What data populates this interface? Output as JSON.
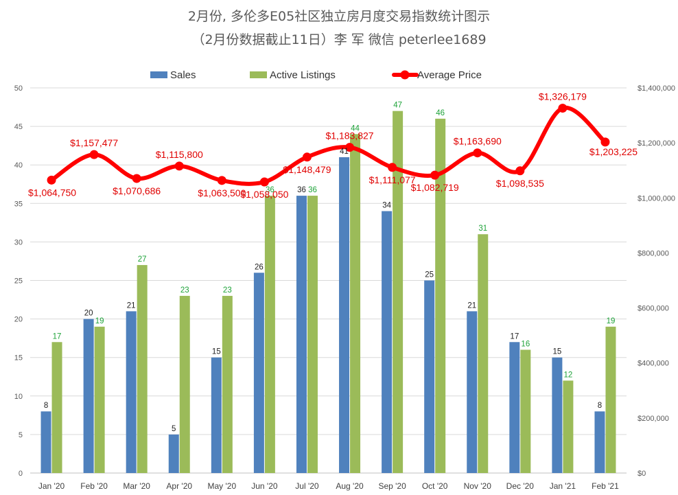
{
  "chart_data": {
    "type": "bar",
    "title": "2月份, 多伦多E05社区独立房月度交易指数统计图示",
    "subtitle": "（2月份数据截止11日）李 军  微信  peterlee1689",
    "categories": [
      "Jan '20",
      "Feb '20",
      "Mar '20",
      "Apr '20",
      "May '20",
      "Jun '20",
      "Jul '20",
      "Aug '20",
      "Sep '20",
      "Oct '20",
      "Nov '20",
      "Dec '20",
      "Jan '21",
      "Feb '21"
    ],
    "series": [
      {
        "name": "Sales",
        "type": "bar",
        "axis": "left",
        "color": "#4f81bd",
        "values": [
          8,
          20,
          21,
          5,
          15,
          26,
          36,
          41,
          34,
          25,
          21,
          17,
          15,
          8
        ]
      },
      {
        "name": "Active Listings",
        "type": "bar",
        "axis": "left",
        "color": "#9bbb59",
        "values": [
          17,
          19,
          27,
          23,
          23,
          36,
          36,
          44,
          47,
          46,
          31,
          16,
          12,
          19
        ]
      },
      {
        "name": "Average Price",
        "type": "line",
        "axis": "right",
        "color": "#ff0000",
        "values": [
          1064750,
          1157477,
          1070686,
          1115800,
          1063500,
          1058050,
          1148479,
          1183827,
          1111077,
          1082719,
          1163690,
          1098535,
          1326179,
          1203225
        ],
        "labels": [
          "$1,064,750",
          "$1,157,477",
          "$1,070,686",
          "$1,115,800",
          "$1,063,500",
          "$1,058,050",
          "$1,148,479",
          "$1,183,827",
          "$1,111,077",
          "$1,082,719",
          "$1,163,690",
          "$1,098,535",
          "$1,326,179",
          "$1,203,225"
        ]
      }
    ],
    "ylim": [
      0,
      50
    ],
    "y_ticks": [
      "0",
      "5",
      "10",
      "15",
      "20",
      "25",
      "30",
      "35",
      "40",
      "45",
      "50"
    ],
    "y2lim": [
      0,
      1400000
    ],
    "y2_ticks": [
      "$0",
      "$200,000",
      "$400,000",
      "$600,000",
      "$800,000",
      "$1,000,000",
      "$1,200,000",
      "$1,400,000"
    ],
    "grid": true,
    "legend_position": "top"
  }
}
